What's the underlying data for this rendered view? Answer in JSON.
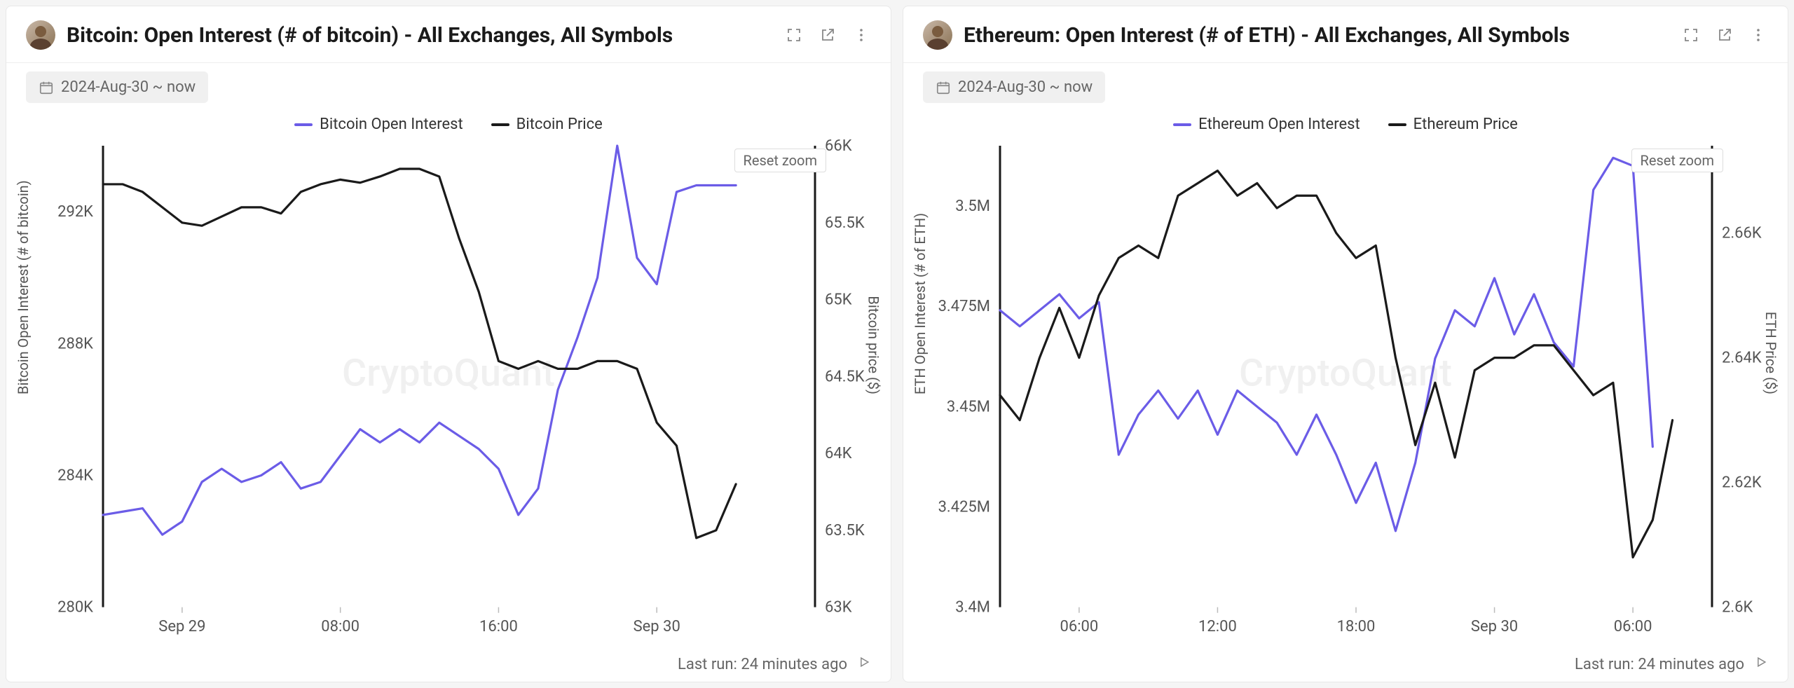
{
  "watermark": "CryptoQuant",
  "panels": [
    {
      "key": "btc",
      "title": "Bitcoin: Open Interest (# of bitcoin) - All Exchanges, All Symbols",
      "date_range": "2024-Aug-30 ~ now",
      "reset_zoom": "Reset zoom",
      "last_run": "Last run: 24 minutes ago",
      "legend": [
        {
          "label": "Bitcoin Open Interest",
          "color": "#6b5ce7"
        },
        {
          "label": "Bitcoin Price",
          "color": "#1a1a1a"
        }
      ],
      "y_left": {
        "label": "Bitcoin Open Interest (# of bitcoin)",
        "min": 280000,
        "max": 294000,
        "ticks": [
          {
            "v": 280000,
            "label": "280K"
          },
          {
            "v": 284000,
            "label": "284K"
          },
          {
            "v": 288000,
            "label": "288K"
          },
          {
            "v": 292000,
            "label": "292K"
          }
        ]
      },
      "y_right": {
        "label": "Bitcoin price ($)",
        "min": 63000,
        "max": 66000,
        "ticks": [
          {
            "v": 63000,
            "label": "63K"
          },
          {
            "v": 63500,
            "label": "63.5K"
          },
          {
            "v": 64000,
            "label": "64K"
          },
          {
            "v": 64500,
            "label": "64.5K"
          },
          {
            "v": 65000,
            "label": "65K"
          },
          {
            "v": 65500,
            "label": "65.5K"
          },
          {
            "v": 66000,
            "label": "66K"
          }
        ]
      },
      "x": {
        "min": 0,
        "max": 36,
        "ticks": [
          {
            "v": 4,
            "label": "Sep 29"
          },
          {
            "v": 12,
            "label": "08:00"
          },
          {
            "v": 20,
            "label": "16:00"
          },
          {
            "v": 28,
            "label": "Sep 30"
          }
        ]
      },
      "series_left": {
        "color": "#6b5ce7",
        "points": [
          [
            0,
            282800
          ],
          [
            1,
            282900
          ],
          [
            2,
            283000
          ],
          [
            3,
            282200
          ],
          [
            4,
            282600
          ],
          [
            5,
            283800
          ],
          [
            6,
            284200
          ],
          [
            7,
            283800
          ],
          [
            8,
            284000
          ],
          [
            9,
            284400
          ],
          [
            10,
            283600
          ],
          [
            11,
            283800
          ],
          [
            12,
            284600
          ],
          [
            13,
            285400
          ],
          [
            14,
            285000
          ],
          [
            15,
            285400
          ],
          [
            16,
            285000
          ],
          [
            17,
            285600
          ],
          [
            18,
            285200
          ],
          [
            19,
            284800
          ],
          [
            20,
            284200
          ],
          [
            21,
            282800
          ],
          [
            22,
            283600
          ],
          [
            23,
            286600
          ],
          [
            24,
            288200
          ],
          [
            25,
            290000
          ],
          [
            26,
            294000
          ],
          [
            27,
            290600
          ],
          [
            28,
            289800
          ],
          [
            29,
            292600
          ],
          [
            30,
            292800
          ],
          [
            31,
            292800
          ],
          [
            32,
            292800
          ]
        ]
      },
      "series_right": {
        "color": "#1a1a1a",
        "points": [
          [
            0,
            65750
          ],
          [
            1,
            65750
          ],
          [
            2,
            65700
          ],
          [
            3,
            65600
          ],
          [
            4,
            65500
          ],
          [
            5,
            65480
          ],
          [
            6,
            65540
          ],
          [
            7,
            65600
          ],
          [
            8,
            65600
          ],
          [
            9,
            65560
          ],
          [
            10,
            65700
          ],
          [
            11,
            65750
          ],
          [
            12,
            65780
          ],
          [
            13,
            65760
          ],
          [
            14,
            65800
          ],
          [
            15,
            65850
          ],
          [
            16,
            65850
          ],
          [
            17,
            65800
          ],
          [
            18,
            65400
          ],
          [
            19,
            65050
          ],
          [
            20,
            64600
          ],
          [
            21,
            64550
          ],
          [
            22,
            64600
          ],
          [
            23,
            64550
          ],
          [
            24,
            64550
          ],
          [
            25,
            64600
          ],
          [
            26,
            64600
          ],
          [
            27,
            64550
          ],
          [
            28,
            64200
          ],
          [
            29,
            64050
          ],
          [
            30,
            63450
          ],
          [
            31,
            63500
          ],
          [
            32,
            63800
          ]
        ]
      },
      "plot_style": {
        "line_width": 3.2,
        "axis_color": "#1a1a1a",
        "tick_color": "#999",
        "tick_fontsize": 22,
        "bg": "#ffffff"
      }
    },
    {
      "key": "eth",
      "title": "Ethereum: Open Interest (# of ETH) - All Exchanges, All Symbols",
      "date_range": "2024-Aug-30 ~ now",
      "reset_zoom": "Reset zoom",
      "last_run": "Last run: 24 minutes ago",
      "legend": [
        {
          "label": "Ethereum Open Interest",
          "color": "#6b5ce7"
        },
        {
          "label": "Ethereum Price",
          "color": "#1a1a1a"
        }
      ],
      "y_left": {
        "label": "ETH Open Interest (# of ETH)",
        "min": 3400000,
        "max": 3515000,
        "ticks": [
          {
            "v": 3400000,
            "label": "3.4M"
          },
          {
            "v": 3425000,
            "label": "3.425M"
          },
          {
            "v": 3450000,
            "label": "3.45M"
          },
          {
            "v": 3475000,
            "label": "3.475M"
          },
          {
            "v": 3500000,
            "label": "3.5M"
          }
        ]
      },
      "y_right": {
        "label": "ETH Price ($)",
        "min": 2600,
        "max": 2674,
        "ticks": [
          {
            "v": 2600,
            "label": "2.6K"
          },
          {
            "v": 2620,
            "label": "2.62K"
          },
          {
            "v": 2640,
            "label": "2.64K"
          },
          {
            "v": 2660,
            "label": "2.66K"
          }
        ]
      },
      "x": {
        "min": 0,
        "max": 36,
        "ticks": [
          {
            "v": 4,
            "label": "06:00"
          },
          {
            "v": 11,
            "label": "12:00"
          },
          {
            "v": 18,
            "label": "18:00"
          },
          {
            "v": 25,
            "label": "Sep 30"
          },
          {
            "v": 32,
            "label": "06:00"
          }
        ]
      },
      "series_left": {
        "color": "#6b5ce7",
        "points": [
          [
            0,
            3474000
          ],
          [
            1,
            3470000
          ],
          [
            2,
            3474000
          ],
          [
            3,
            3478000
          ],
          [
            4,
            3472000
          ],
          [
            5,
            3476000
          ],
          [
            6,
            3438000
          ],
          [
            7,
            3448000
          ],
          [
            8,
            3454000
          ],
          [
            9,
            3447000
          ],
          [
            10,
            3454000
          ],
          [
            11,
            3443000
          ],
          [
            12,
            3454000
          ],
          [
            13,
            3450000
          ],
          [
            14,
            3446000
          ],
          [
            15,
            3438000
          ],
          [
            16,
            3448000
          ],
          [
            17,
            3438000
          ],
          [
            18,
            3426000
          ],
          [
            19,
            3436000
          ],
          [
            20,
            3419000
          ],
          [
            21,
            3436000
          ],
          [
            22,
            3462000
          ],
          [
            23,
            3474000
          ],
          [
            24,
            3470000
          ],
          [
            25,
            3482000
          ],
          [
            26,
            3468000
          ],
          [
            27,
            3478000
          ],
          [
            28,
            3466000
          ],
          [
            29,
            3460000
          ],
          [
            30,
            3504000
          ],
          [
            31,
            3512000
          ],
          [
            32,
            3510000
          ],
          [
            33,
            3440000
          ]
        ]
      },
      "series_right": {
        "color": "#1a1a1a",
        "points": [
          [
            0,
            2634
          ],
          [
            1,
            2630
          ],
          [
            2,
            2640
          ],
          [
            3,
            2648
          ],
          [
            4,
            2640
          ],
          [
            5,
            2650
          ],
          [
            6,
            2656
          ],
          [
            7,
            2658
          ],
          [
            8,
            2656
          ],
          [
            9,
            2666
          ],
          [
            10,
            2668
          ],
          [
            11,
            2670
          ],
          [
            12,
            2666
          ],
          [
            13,
            2668
          ],
          [
            14,
            2664
          ],
          [
            15,
            2666
          ],
          [
            16,
            2666
          ],
          [
            17,
            2660
          ],
          [
            18,
            2656
          ],
          [
            19,
            2658
          ],
          [
            20,
            2640
          ],
          [
            21,
            2626
          ],
          [
            22,
            2636
          ],
          [
            23,
            2624
          ],
          [
            24,
            2638
          ],
          [
            25,
            2640
          ],
          [
            26,
            2640
          ],
          [
            27,
            2642
          ],
          [
            28,
            2642
          ],
          [
            29,
            2638
          ],
          [
            30,
            2634
          ],
          [
            31,
            2636
          ],
          [
            32,
            2608
          ],
          [
            33,
            2614
          ],
          [
            34,
            2630
          ]
        ]
      },
      "plot_style": {
        "line_width": 3.2,
        "axis_color": "#1a1a1a",
        "tick_color": "#999",
        "tick_fontsize": 22,
        "bg": "#ffffff"
      }
    }
  ]
}
